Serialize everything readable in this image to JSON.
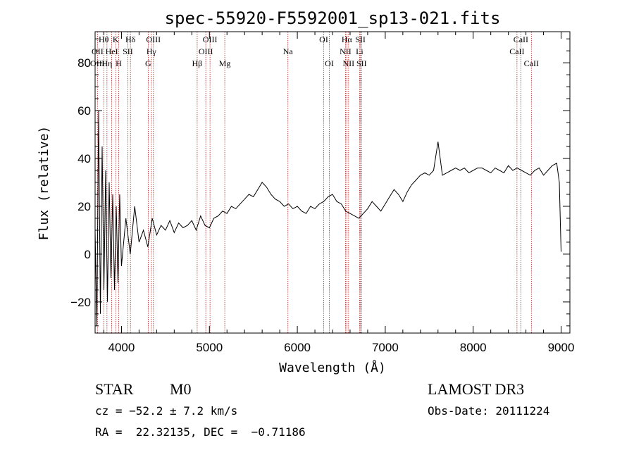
{
  "chart_data": {
    "type": "line",
    "title": "spec-55920-F5592001_sp13-021.fits",
    "xlabel": "Wavelength (Å)",
    "ylabel": "Flux (relative)",
    "xlim": [
      3700,
      9100
    ],
    "ylim": [
      -33,
      93
    ],
    "x_ticks": [
      4000,
      5000,
      6000,
      7000,
      8000,
      9000
    ],
    "y_ticks": [
      -20,
      0,
      20,
      40,
      60,
      80
    ],
    "grid": false,
    "line_color": "#000000",
    "marker_color": "#b22222",
    "series": [
      {
        "x": [
          3700,
          3720,
          3740,
          3760,
          3780,
          3800,
          3820,
          3840,
          3860,
          3880,
          3900,
          3920,
          3940,
          3960,
          3980,
          4000,
          4050,
          4100,
          4150,
          4200,
          4250,
          4300,
          4350,
          4400,
          4450,
          4500,
          4550,
          4600,
          4650,
          4700,
          4750,
          4800,
          4850,
          4900,
          4950,
          5000,
          5050,
          5100,
          5150,
          5200,
          5250,
          5300,
          5350,
          5400,
          5450,
          5500,
          5550,
          5600,
          5650,
          5700,
          5750,
          5800,
          5850,
          5900,
          5950,
          6000,
          6050,
          6100,
          6150,
          6200,
          6250,
          6300,
          6350,
          6400,
          6450,
          6500,
          6550,
          6600,
          6650,
          6700,
          6750,
          6800,
          6850,
          6900,
          6950,
          7000,
          7050,
          7100,
          7150,
          7200,
          7250,
          7300,
          7350,
          7400,
          7450,
          7500,
          7550,
          7600,
          7650,
          7700,
          7750,
          7800,
          7850,
          7900,
          7950,
          8000,
          8050,
          8100,
          8150,
          8200,
          8250,
          8300,
          8350,
          8400,
          8450,
          8500,
          8550,
          8600,
          8650,
          8700,
          8750,
          8800,
          8850,
          8900,
          8950,
          8980,
          9000
        ],
        "y": [
          10,
          -30,
          60,
          -25,
          45,
          -15,
          35,
          -20,
          30,
          -10,
          25,
          -15,
          20,
          -12,
          25,
          -5,
          15,
          0,
          20,
          5,
          10,
          3,
          15,
          8,
          12,
          10,
          14,
          9,
          13,
          11,
          12,
          14,
          10,
          16,
          12,
          11,
          15,
          16,
          18,
          17,
          20,
          19,
          21,
          23,
          25,
          24,
          27,
          30,
          28,
          25,
          23,
          22,
          20,
          21,
          19,
          20,
          18,
          17,
          20,
          19,
          21,
          22,
          24,
          25,
          22,
          21,
          18,
          17,
          16,
          15,
          17,
          19,
          22,
          20,
          18,
          21,
          24,
          27,
          25,
          22,
          26,
          29,
          31,
          33,
          34,
          33,
          35,
          47,
          33,
          34,
          35,
          36,
          35,
          36,
          34,
          35,
          36,
          36,
          35,
          34,
          36,
          35,
          34,
          37,
          35,
          36,
          35,
          34,
          33,
          35,
          36,
          33,
          35,
          37,
          38,
          30,
          1
        ]
      }
    ],
    "spectral_lines": [
      {
        "label": "Hθ",
        "x": 3798,
        "row": 0,
        "pos": "center"
      },
      {
        "label": "K",
        "x": 3934,
        "row": 0,
        "pos": "center"
      },
      {
        "label": "Hδ",
        "x": 4102,
        "row": 0,
        "pos": "center"
      },
      {
        "label": "OIII",
        "x": 4363,
        "row": 0,
        "pos": "center"
      },
      {
        "label": "OIII",
        "x": 5007,
        "row": 0,
        "pos": "center"
      },
      {
        "label": "OI",
        "x": 6300,
        "row": 0,
        "pos": "center"
      },
      {
        "label": "Hα",
        "x": 6563,
        "row": 0,
        "pos": "center"
      },
      {
        "label": "SII",
        "x": 6717,
        "row": 0,
        "pos": "center"
      },
      {
        "label": "CaII",
        "x": 8542,
        "row": 0,
        "pos": "center"
      },
      {
        "label": "OII",
        "x": 3727,
        "row": 1,
        "pos": "center"
      },
      {
        "label": "HeI",
        "x": 3889,
        "row": 1,
        "pos": "center"
      },
      {
        "label": "SII",
        "x": 4072,
        "row": 1,
        "pos": "center"
      },
      {
        "label": "Hγ",
        "x": 4340,
        "row": 1,
        "pos": "center"
      },
      {
        "label": "OIII",
        "x": 4959,
        "row": 1,
        "pos": "center"
      },
      {
        "label": "Na",
        "x": 5893,
        "row": 1,
        "pos": "center"
      },
      {
        "label": "NII",
        "x": 6548,
        "row": 1,
        "pos": "center"
      },
      {
        "label": "Li",
        "x": 6708,
        "row": 1,
        "pos": "center"
      },
      {
        "label": "CaII",
        "x": 8498,
        "row": 1,
        "pos": "center"
      },
      {
        "label": "OIII",
        "x": 3727,
        "row": 2,
        "pos": "center"
      },
      {
        "label": "Hη",
        "x": 3835,
        "row": 2,
        "pos": "center"
      },
      {
        "label": "H",
        "x": 3968,
        "row": 2,
        "pos": "center"
      },
      {
        "label": "G",
        "x": 4304,
        "row": 2,
        "pos": "center"
      },
      {
        "label": "Hβ",
        "x": 4861,
        "row": 2,
        "pos": "center"
      },
      {
        "label": "Mg",
        "x": 5175,
        "row": 2,
        "pos": "center"
      },
      {
        "label": "OI",
        "x": 6364,
        "row": 2,
        "pos": "center"
      },
      {
        "label": "NII",
        "x": 6583,
        "row": 2,
        "pos": "center"
      },
      {
        "label": "SII",
        "x": 6731,
        "row": 2,
        "pos": "center"
      },
      {
        "label": "CaII",
        "x": 8662,
        "row": 2,
        "pos": "center"
      }
    ]
  },
  "info": {
    "classification": "STAR",
    "subclass": "M0",
    "survey": "LAMOST DR3",
    "cz": "cz = −52.2 ± 7.2 km/s",
    "obs_date": "Obs-Date: 20111224",
    "radec": "RA =  22.32135, DEC =  −0.71186"
  }
}
